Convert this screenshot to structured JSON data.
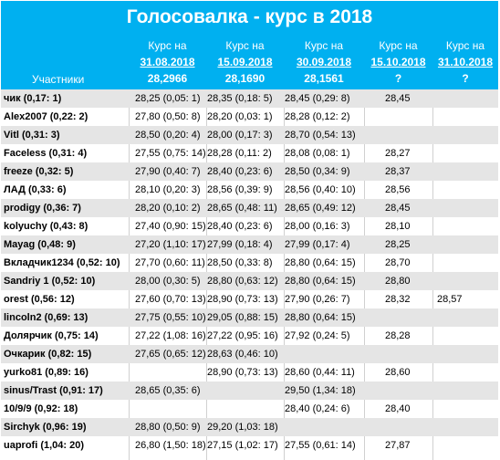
{
  "title": "Голосовалка - курс в 2018",
  "header": {
    "participants_label": "Участники",
    "columns": [
      {
        "l1": "Курс на",
        "l2": "31.08.2018",
        "l3": "28,2966"
      },
      {
        "l1": "Курс на",
        "l2": "15.09.2018",
        "l3": "28,1690"
      },
      {
        "l1": "Курс на",
        "l2": "30.09.2018",
        "l3": "28,1561"
      },
      {
        "l1": "Курс на",
        "l2": "15.10.2018",
        "l3": "?"
      },
      {
        "l1": "Курс на",
        "l2": "31.10.2018",
        "l3": "?"
      }
    ]
  },
  "rows": [
    {
      "name": "чик (0,17: 1)",
      "c1": "28,25 (0,05: 1)",
      "c2": "28,35 (0,18: 5)",
      "c3": "28,45 (0,29: 8)",
      "c4": "28,45",
      "c5": ""
    },
    {
      "name": "Alex2007 (0,22: 2)",
      "c1": "27,80 (0,50: 8)",
      "c2": "28,20 (0,03: 1)",
      "c3": "28,28 (0,12: 2)",
      "c4": "",
      "c5": ""
    },
    {
      "name": "Vitl (0,31: 3)",
      "c1": "28,50 (0,20: 4)",
      "c2": "28,00 (0,17: 3)",
      "c3": "28,70 (0,54: 13)",
      "c4": "",
      "c5": ""
    },
    {
      "name": "Faceless (0,31: 4)",
      "c1": "27,55 (0,75: 14)",
      "c2": "28,28 (0,11: 2)",
      "c3": "28,08 (0,08: 1)",
      "c4": "28,27",
      "c5": ""
    },
    {
      "name": "freeze (0,32: 5)",
      "c1": "27,90 (0,40: 7)",
      "c2": "28,40 (0,23: 6)",
      "c3": "28,50 (0,34: 9)",
      "c4": "28,37",
      "c5": ""
    },
    {
      "name": "ЛАД (0,33: 6)",
      "c1": "28,10 (0,20: 3)",
      "c2": "28,56 (0,39: 9)",
      "c3": "28,56 (0,40: 10)",
      "c4": "28,56",
      "c5": ""
    },
    {
      "name": "prodigy (0,36: 7)",
      "c1": "28,20 (0,10: 2)",
      "c2": "28,65 (0,48: 11)",
      "c3": "28,65 (0,49: 12)",
      "c4": "28,45",
      "c5": ""
    },
    {
      "name": "kolyuchy (0,43: 8)",
      "c1": "27,40 (0,90: 15)",
      "c2": "28,40 (0,23: 6)",
      "c3": "28,00 (0,16: 3)",
      "c4": "28,10",
      "c5": ""
    },
    {
      "name": "Mayag (0,48: 9)",
      "c1": "27,20 (1,10: 17)",
      "c2": "27,99 (0,18: 4)",
      "c3": "27,99 (0,17: 4)",
      "c4": "28,25",
      "c5": ""
    },
    {
      "name": "Вкладчик1234 (0,52: 10)",
      "c1": "27,70 (0,60: 11)",
      "c2": "28,50 (0,33: 8)",
      "c3": "28,80 (0,64: 15)",
      "c4": "28,70",
      "c5": ""
    },
    {
      "name": "Sandriy 1 (0,52: 10)",
      "c1": "28,00 (0,30: 5)",
      "c2": "28,80 (0,63: 12)",
      "c3": "28,80 (0,64: 15)",
      "c4": "28,80",
      "c5": ""
    },
    {
      "name": "orest (0,56: 12)",
      "c1": "27,60 (0,70: 13)",
      "c2": "28,90 (0,73: 13)",
      "c3": "27,90 (0,26: 7)",
      "c4": "28,32",
      "c5": "28,57"
    },
    {
      "name": "lincoln2 (0,69: 13)",
      "c1": "27,75 (0,55: 10)",
      "c2": "29,05 (0,88: 15)",
      "c3": "28,80 (0,64: 15)",
      "c4": "",
      "c5": ""
    },
    {
      "name": "Долярчик (0,75: 14)",
      "c1": "27,22 (1,08: 16)",
      "c2": "27,22 (0,95: 16)",
      "c3": "27,92 (0,24: 5)",
      "c4": "28,28",
      "c5": ""
    },
    {
      "name": "Очкарик (0,82: 15)",
      "c1": "27,65 (0,65: 12)",
      "c2": "28,63 (0,46: 10)",
      "c3": "",
      "c4": "",
      "c5": ""
    },
    {
      "name": "yurko81 (0,89: 16)",
      "c1": "",
      "c2": "28,90 (0,73: 13)",
      "c3": "28,60 (0,44: 11)",
      "c4": "28,60",
      "c5": ""
    },
    {
      "name": "sinus/Trast (0,91: 17)",
      "c1": "28,65 (0,35: 6)",
      "c2": "",
      "c3": "29,50 (1,34: 18)",
      "c4": "",
      "c5": ""
    },
    {
      "name": "10/9/9 (0,92: 18)",
      "c1": "",
      "c2": "",
      "c3": "28,40 (0,24: 6)",
      "c4": "28,40",
      "c5": ""
    },
    {
      "name": "Sirchyk (0,96: 19)",
      "c1": "28,80 (0,50: 9)",
      "c2": "29,20 (1,03: 18)",
      "c3": "",
      "c4": "",
      "c5": ""
    },
    {
      "name": "uaprofi (1,04: 20)",
      "c1": "26,80 (1,50: 18)",
      "c2": "27,15 (1,02: 17)",
      "c3": "27,55 (0,61: 14)",
      "c4": "27,87",
      "c5": ""
    }
  ]
}
